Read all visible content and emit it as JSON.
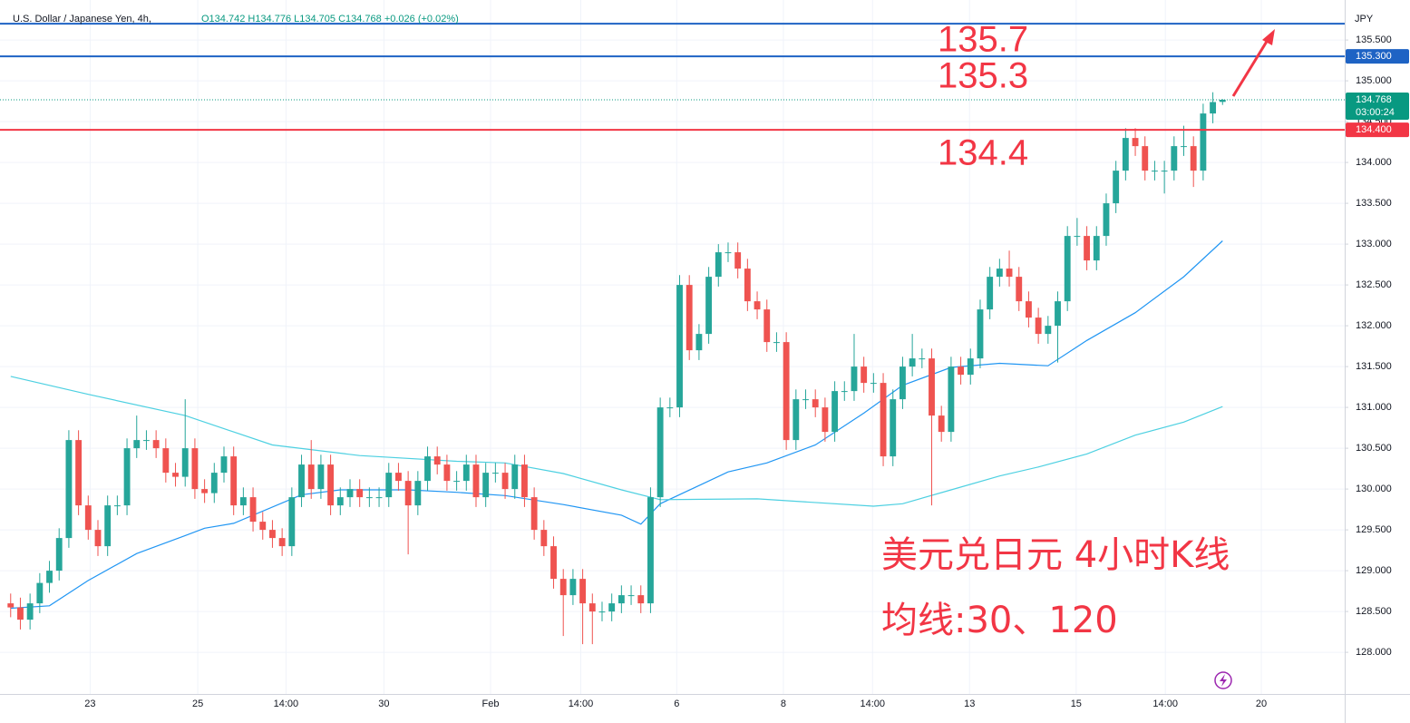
{
  "header": {
    "title": "U.S. Dollar / Japanese Yen, 4h,",
    "ohlc": "O134.742 H134.776 L134.705 C134.768 +0.026 (+0.02%)"
  },
  "chart_data": {
    "type": "candlestick",
    "currency": "JPY",
    "up_color": "#26a69a",
    "down_color": "#ef5350",
    "candles": {
      "open": [
        128.6,
        128.55,
        128.4,
        128.6,
        128.85,
        129.0,
        129.4,
        130.6,
        129.8,
        129.5,
        129.3,
        129.8,
        129.8,
        130.5,
        130.6,
        130.6,
        130.5,
        130.2,
        130.15,
        130.5,
        130.0,
        129.95,
        130.2,
        130.4,
        129.8,
        129.9,
        129.6,
        129.5,
        129.4,
        129.3,
        129.9,
        130.3,
        130.0,
        130.3,
        129.8,
        129.9,
        130.0,
        129.9,
        129.9,
        129.9,
        130.2,
        130.1,
        129.8,
        130.1,
        130.4,
        130.3,
        130.1,
        130.1,
        130.3,
        129.9,
        130.2,
        130.2,
        130.0,
        130.3,
        129.9,
        129.5,
        129.3,
        128.9,
        128.7,
        128.9,
        128.6,
        128.5,
        128.5,
        128.6,
        128.7,
        128.7,
        128.6,
        129.9,
        131.0,
        131.0,
        132.5,
        131.7,
        131.9,
        132.6,
        132.9,
        132.9,
        132.7,
        132.3,
        132.2,
        131.8,
        131.8,
        130.6,
        131.1,
        131.1,
        131.0,
        130.7,
        131.2,
        131.2,
        131.5,
        131.3,
        131.3,
        130.4,
        131.1,
        131.5,
        131.6,
        131.6,
        130.9,
        130.7,
        131.5,
        131.4,
        131.6,
        132.2,
        132.6,
        132.7,
        132.6,
        132.3,
        132.1,
        131.9,
        132.0,
        132.3,
        133.1,
        133.1,
        132.8,
        133.1,
        133.5,
        133.9,
        134.3,
        134.2,
        133.9,
        133.9,
        133.9,
        134.2,
        134.2,
        133.9,
        134.6,
        134.742
      ],
      "high": [
        128.72,
        128.67,
        128.72,
        128.97,
        129.12,
        129.52,
        130.72,
        130.72,
        129.92,
        129.62,
        129.92,
        129.92,
        130.62,
        130.9,
        130.72,
        130.72,
        130.62,
        130.32,
        131.1,
        130.62,
        130.12,
        130.32,
        130.52,
        130.52,
        130.02,
        130.02,
        129.72,
        129.62,
        129.52,
        130.02,
        130.42,
        130.6,
        130.42,
        130.42,
        130.02,
        130.12,
        130.12,
        130.02,
        130.02,
        130.32,
        130.32,
        130.22,
        130.22,
        130.52,
        130.52,
        130.42,
        130.22,
        130.42,
        130.42,
        130.32,
        130.32,
        130.32,
        130.42,
        130.42,
        130.02,
        129.62,
        129.42,
        129.02,
        129.02,
        129.02,
        128.72,
        128.62,
        128.72,
        128.82,
        128.82,
        128.82,
        130.02,
        131.12,
        131.12,
        132.62,
        132.62,
        132.02,
        132.72,
        133.0,
        133.02,
        133.02,
        132.82,
        132.42,
        132.32,
        131.92,
        131.92,
        131.22,
        131.22,
        131.22,
        131.12,
        131.32,
        131.32,
        131.9,
        131.62,
        131.42,
        131.42,
        131.22,
        131.62,
        131.9,
        131.72,
        131.72,
        131.02,
        131.62,
        131.62,
        131.72,
        132.32,
        132.72,
        132.82,
        132.92,
        132.72,
        132.42,
        132.22,
        132.12,
        132.42,
        133.22,
        133.32,
        133.22,
        133.22,
        133.62,
        134.02,
        134.42,
        134.42,
        134.32,
        134.02,
        134.02,
        134.32,
        134.45,
        134.32,
        134.72,
        134.86,
        134.776
      ],
      "low": [
        128.43,
        128.28,
        128.28,
        128.48,
        128.73,
        128.88,
        129.28,
        129.68,
        129.38,
        129.18,
        129.18,
        129.68,
        129.68,
        130.38,
        130.48,
        130.38,
        130.08,
        130.03,
        130.03,
        129.88,
        129.83,
        129.83,
        130.08,
        129.68,
        129.68,
        129.48,
        129.38,
        129.28,
        129.18,
        129.18,
        129.78,
        129.88,
        129.88,
        129.68,
        129.68,
        129.78,
        129.78,
        129.78,
        129.78,
        129.78,
        129.98,
        129.2,
        129.68,
        129.98,
        130.18,
        129.98,
        129.98,
        129.98,
        129.78,
        129.78,
        130.08,
        129.88,
        129.88,
        129.78,
        129.38,
        129.18,
        128.78,
        128.2,
        128.58,
        128.1,
        128.1,
        128.38,
        128.38,
        128.48,
        128.58,
        128.48,
        128.48,
        129.78,
        130.88,
        130.88,
        131.58,
        131.58,
        131.78,
        132.48,
        132.78,
        132.58,
        132.18,
        132.08,
        131.68,
        131.68,
        130.48,
        130.48,
        130.98,
        130.88,
        130.58,
        130.58,
        131.08,
        131.08,
        131.18,
        131.18,
        130.28,
        130.28,
        130.98,
        131.38,
        131.48,
        129.8,
        130.58,
        130.58,
        131.28,
        131.28,
        131.48,
        132.08,
        132.48,
        132.48,
        132.18,
        131.98,
        131.78,
        131.78,
        131.55,
        132.18,
        132.98,
        132.68,
        132.68,
        132.98,
        133.38,
        133.78,
        134.08,
        133.78,
        133.78,
        133.62,
        133.78,
        134.08,
        133.7,
        133.78,
        134.48,
        134.705
      ],
      "close": [
        128.55,
        128.4,
        128.6,
        128.85,
        129.0,
        129.4,
        130.6,
        129.8,
        129.5,
        129.3,
        129.8,
        129.8,
        130.5,
        130.6,
        130.6,
        130.5,
        130.2,
        130.15,
        130.5,
        130.0,
        129.95,
        130.2,
        130.4,
        129.8,
        129.9,
        129.6,
        129.5,
        129.4,
        129.3,
        129.9,
        130.3,
        130.0,
        130.3,
        129.8,
        129.9,
        130.0,
        129.9,
        129.9,
        129.9,
        130.2,
        130.1,
        129.8,
        130.1,
        130.4,
        130.3,
        130.1,
        130.1,
        130.3,
        129.9,
        130.2,
        130.2,
        130.0,
        130.3,
        129.9,
        129.5,
        129.3,
        128.9,
        128.7,
        128.9,
        128.6,
        128.5,
        128.5,
        128.6,
        128.7,
        128.7,
        128.6,
        129.9,
        131.0,
        131.0,
        132.5,
        131.7,
        131.9,
        132.6,
        132.9,
        132.9,
        132.7,
        132.3,
        132.2,
        131.8,
        131.8,
        130.6,
        131.1,
        131.1,
        131.0,
        130.7,
        131.2,
        131.2,
        131.5,
        131.3,
        131.3,
        130.4,
        131.1,
        131.5,
        131.6,
        131.6,
        130.9,
        130.7,
        131.5,
        131.4,
        131.6,
        132.2,
        132.6,
        132.7,
        132.6,
        132.3,
        132.1,
        131.9,
        132.0,
        132.3,
        133.1,
        133.1,
        132.8,
        133.1,
        133.5,
        133.9,
        134.3,
        134.2,
        133.9,
        133.9,
        133.9,
        134.2,
        134.2,
        133.9,
        134.6,
        134.74,
        134.768
      ]
    },
    "moving_averages": [
      {
        "color": "#2196f3",
        "x": [
          0,
          4,
          8,
          13,
          18,
          20,
          23,
          30,
          34,
          41,
          46,
          51,
          57,
          63,
          65,
          67,
          74,
          78,
          83,
          88,
          92,
          97,
          102,
          107,
          111,
          116,
          121,
          125
        ],
        "values": [
          128.54,
          128.57,
          128.88,
          129.21,
          129.43,
          129.52,
          129.58,
          129.93,
          129.99,
          129.99,
          129.96,
          129.92,
          129.81,
          129.68,
          129.57,
          129.82,
          130.21,
          130.32,
          130.54,
          130.93,
          131.27,
          131.49,
          131.54,
          131.51,
          131.82,
          132.16,
          132.6,
          133.04
        ]
      },
      {
        "color": "#4dd0e1",
        "x": [
          0,
          8,
          18,
          27,
          36,
          46,
          51,
          57,
          63,
          67,
          77,
          89,
          92,
          97,
          102,
          106,
          111,
          116,
          121,
          125
        ],
        "values": [
          131.38,
          131.16,
          130.9,
          130.54,
          130.41,
          130.34,
          130.32,
          130.19,
          129.99,
          129.87,
          129.88,
          129.79,
          129.82,
          129.99,
          130.16,
          130.27,
          130.43,
          130.66,
          130.82,
          131.01
        ]
      }
    ],
    "levels": [
      {
        "value": 135.7,
        "color": "#1e63c4",
        "label": "135.7"
      },
      {
        "value": 135.3,
        "color": "#1e63c4",
        "label": "135.3",
        "axis_label": "135.300"
      },
      {
        "value": 134.4,
        "color": "#f23645",
        "label": "134.4",
        "axis_label": "134.400"
      }
    ],
    "last_price": {
      "value": 134.768,
      "label": "134.768",
      "countdown": "03:00:24",
      "color": "#089981"
    },
    "annotations": [
      "美元兑日元 4小时K线",
      "均线:30、120"
    ],
    "xlim": [
      -1.1,
      137.6
    ],
    "xticks": [
      {
        "value": 8.2,
        "label": "23"
      },
      {
        "value": 19.3,
        "label": "25"
      },
      {
        "value": 28.4,
        "label": "14:00"
      },
      {
        "value": 38.5,
        "label": "30"
      },
      {
        "value": 49.5,
        "label": "Feb"
      },
      {
        "value": 58.8,
        "label": "14:00"
      },
      {
        "value": 68.7,
        "label": "6"
      },
      {
        "value": 79.7,
        "label": "8"
      },
      {
        "value": 88.9,
        "label": "14:00"
      },
      {
        "value": 98.9,
        "label": "13"
      },
      {
        "value": 109.9,
        "label": "15"
      },
      {
        "value": 119.1,
        "label": "14:00"
      },
      {
        "value": 129.0,
        "label": "20"
      }
    ],
    "ylim": [
      127.49,
      135.99
    ],
    "yticks": [
      {
        "value": 128.0,
        "label": "128.000"
      },
      {
        "value": 128.5,
        "label": "128.500"
      },
      {
        "value": 129.0,
        "label": "129.000"
      },
      {
        "value": 129.5,
        "label": "129.500"
      },
      {
        "value": 130.0,
        "label": "130.000"
      },
      {
        "value": 130.5,
        "label": "130.500"
      },
      {
        "value": 131.0,
        "label": "131.000"
      },
      {
        "value": 131.5,
        "label": "131.500"
      },
      {
        "value": 132.0,
        "label": "132.000"
      },
      {
        "value": 132.5,
        "label": "132.500"
      },
      {
        "value": 133.0,
        "label": "133.000"
      },
      {
        "value": 133.5,
        "label": "133.500"
      },
      {
        "value": 134.0,
        "label": "134.000"
      },
      {
        "value": 134.5,
        "label": "134.500"
      },
      {
        "value": 135.0,
        "label": "135.000"
      },
      {
        "value": 135.5,
        "label": "135.500"
      }
    ]
  }
}
